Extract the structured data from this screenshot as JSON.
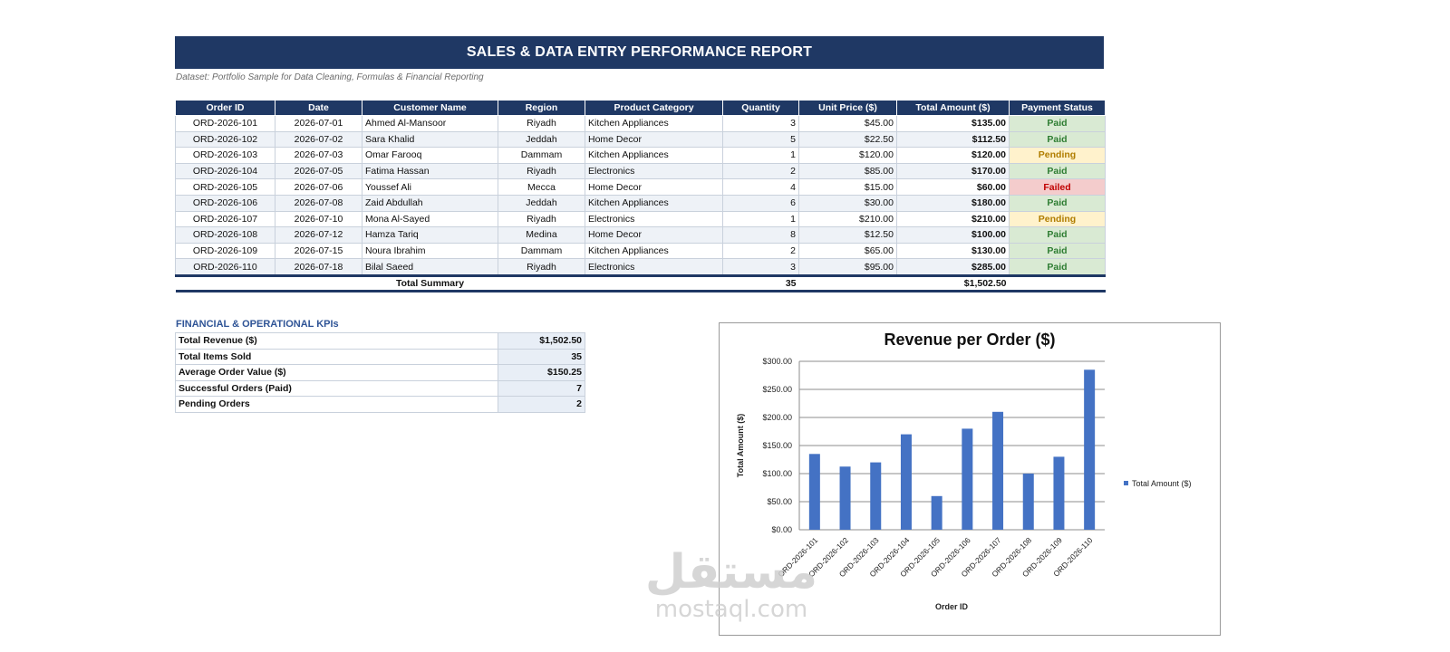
{
  "report": {
    "title": "SALES & DATA ENTRY PERFORMANCE REPORT",
    "subtitle": "Dataset: Portfolio Sample for Data Cleaning, Formulas & Financial Reporting"
  },
  "orders": {
    "columns": [
      "Order ID",
      "Date",
      "Customer Name",
      "Region",
      "Product Category",
      "Quantity",
      "Unit Price ($)",
      "Total Amount ($)",
      "Payment Status"
    ],
    "rows": [
      {
        "order_id": "ORD-2026-101",
        "date": "2026-07-01",
        "customer": "Ahmed Al-Mansoor",
        "region": "Riyadh",
        "category": "Kitchen Appliances",
        "quantity": "3",
        "unit_price": "$45.00",
        "total": "$135.00",
        "status": "Paid"
      },
      {
        "order_id": "ORD-2026-102",
        "date": "2026-07-02",
        "customer": "Sara Khalid",
        "region": "Jeddah",
        "category": "Home Decor",
        "quantity": "5",
        "unit_price": "$22.50",
        "total": "$112.50",
        "status": "Paid"
      },
      {
        "order_id": "ORD-2026-103",
        "date": "2026-07-03",
        "customer": "Omar Farooq",
        "region": "Dammam",
        "category": "Kitchen Appliances",
        "quantity": "1",
        "unit_price": "$120.00",
        "total": "$120.00",
        "status": "Pending"
      },
      {
        "order_id": "ORD-2026-104",
        "date": "2026-07-05",
        "customer": "Fatima Hassan",
        "region": "Riyadh",
        "category": "Electronics",
        "quantity": "2",
        "unit_price": "$85.00",
        "total": "$170.00",
        "status": "Paid"
      },
      {
        "order_id": "ORD-2026-105",
        "date": "2026-07-06",
        "customer": "Youssef Ali",
        "region": "Mecca",
        "category": "Home Decor",
        "quantity": "4",
        "unit_price": "$15.00",
        "total": "$60.00",
        "status": "Failed"
      },
      {
        "order_id": "ORD-2026-106",
        "date": "2026-07-08",
        "customer": "Zaid Abdullah",
        "region": "Jeddah",
        "category": "Kitchen Appliances",
        "quantity": "6",
        "unit_price": "$30.00",
        "total": "$180.00",
        "status": "Paid"
      },
      {
        "order_id": "ORD-2026-107",
        "date": "2026-07-10",
        "customer": "Mona Al-Sayed",
        "region": "Riyadh",
        "category": "Electronics",
        "quantity": "1",
        "unit_price": "$210.00",
        "total": "$210.00",
        "status": "Pending"
      },
      {
        "order_id": "ORD-2026-108",
        "date": "2026-07-12",
        "customer": "Hamza Tariq",
        "region": "Medina",
        "category": "Home Decor",
        "quantity": "8",
        "unit_price": "$12.50",
        "total": "$100.00",
        "status": "Paid"
      },
      {
        "order_id": "ORD-2026-109",
        "date": "2026-07-15",
        "customer": "Noura Ibrahim",
        "region": "Dammam",
        "category": "Kitchen Appliances",
        "quantity": "2",
        "unit_price": "$65.00",
        "total": "$130.00",
        "status": "Paid"
      },
      {
        "order_id": "ORD-2026-110",
        "date": "2026-07-18",
        "customer": "Bilal Saeed",
        "region": "Riyadh",
        "category": "Electronics",
        "quantity": "3",
        "unit_price": "$95.00",
        "total": "$285.00",
        "status": "Paid"
      }
    ],
    "summary": {
      "label": "Total Summary",
      "quantity": "35",
      "total": "$1,502.50"
    }
  },
  "status_colors": {
    "Paid": {
      "bg": "#d9ead3",
      "fg": "#2e7d32"
    },
    "Pending": {
      "bg": "#fff2cc",
      "fg": "#b07d00"
    },
    "Failed": {
      "bg": "#f4cccc",
      "fg": "#c00000"
    }
  },
  "theme": {
    "header_bg": "#1f3864",
    "kpi_title_color": "#2f5496",
    "bar_color": "#4472c4"
  },
  "kpis": {
    "title": "FINANCIAL & OPERATIONAL KPIs",
    "rows": [
      {
        "label": "Total Revenue ($)",
        "value": "$1,502.50"
      },
      {
        "label": "Total Items Sold",
        "value": "35"
      },
      {
        "label": "Average Order Value ($)",
        "value": "$150.25"
      },
      {
        "label": "Successful Orders (Paid)",
        "value": "7"
      },
      {
        "label": "Pending Orders",
        "value": "2"
      }
    ]
  },
  "chart_data": {
    "type": "bar",
    "title": "Revenue per Order ($)",
    "xlabel": "Order ID",
    "ylabel": "Total Amount ($)",
    "categories": [
      "ORD-2026-101",
      "ORD-2026-102",
      "ORD-2026-103",
      "ORD-2026-104",
      "ORD-2026-105",
      "ORD-2026-106",
      "ORD-2026-107",
      "ORD-2026-108",
      "ORD-2026-109",
      "ORD-2026-110"
    ],
    "series": [
      {
        "name": "Total Amount ($)",
        "values": [
          135,
          112.5,
          120,
          170,
          60,
          180,
          210,
          100,
          130,
          285
        ]
      }
    ],
    "ylim": [
      0,
      300
    ],
    "yticks": [
      "$0.00",
      "$50.00",
      "$100.00",
      "$150.00",
      "$200.00",
      "$250.00",
      "$300.00"
    ],
    "grid": true,
    "legend": "right"
  },
  "watermark": {
    "arabic": "مستقل",
    "latin": "mostaql.com"
  }
}
